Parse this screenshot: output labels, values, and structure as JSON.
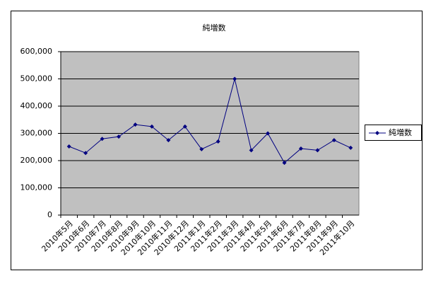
{
  "chart_data": {
    "type": "line",
    "title": "純増数",
    "categories": [
      "2010年5月",
      "2010年6月",
      "2010年7月",
      "2010年8月",
      "2010年9月",
      "2010年10月",
      "2010年11月",
      "2010年12月",
      "2011年1月",
      "2011年2月",
      "2011年3月",
      "2011年4月",
      "2011年5月",
      "2011年6月",
      "2011年7月",
      "2011年8月",
      "2011年9月",
      "2011年10月"
    ],
    "series": [
      {
        "name": "純増数",
        "color": "#000080",
        "values": [
          252000,
          228000,
          280000,
          288000,
          332000,
          325000,
          275000,
          325000,
          242000,
          270000,
          500000,
          238000,
          300000,
          192000,
          244000,
          238000,
          275000,
          247000
        ]
      }
    ],
    "ylim": [
      0,
      600000
    ],
    "yticks": [
      0,
      {
        "value": 100000,
        "label": "100,000"
      },
      {
        "value": 200000,
        "label": "200,000"
      },
      {
        "value": 300000,
        "label": "300,000"
      },
      {
        "value": 400000,
        "label": "400,000"
      },
      {
        "value": 500000,
        "label": "500,000"
      },
      {
        "value": 600000,
        "label": "600,000"
      }
    ],
    "grid": true,
    "legend": "right"
  }
}
